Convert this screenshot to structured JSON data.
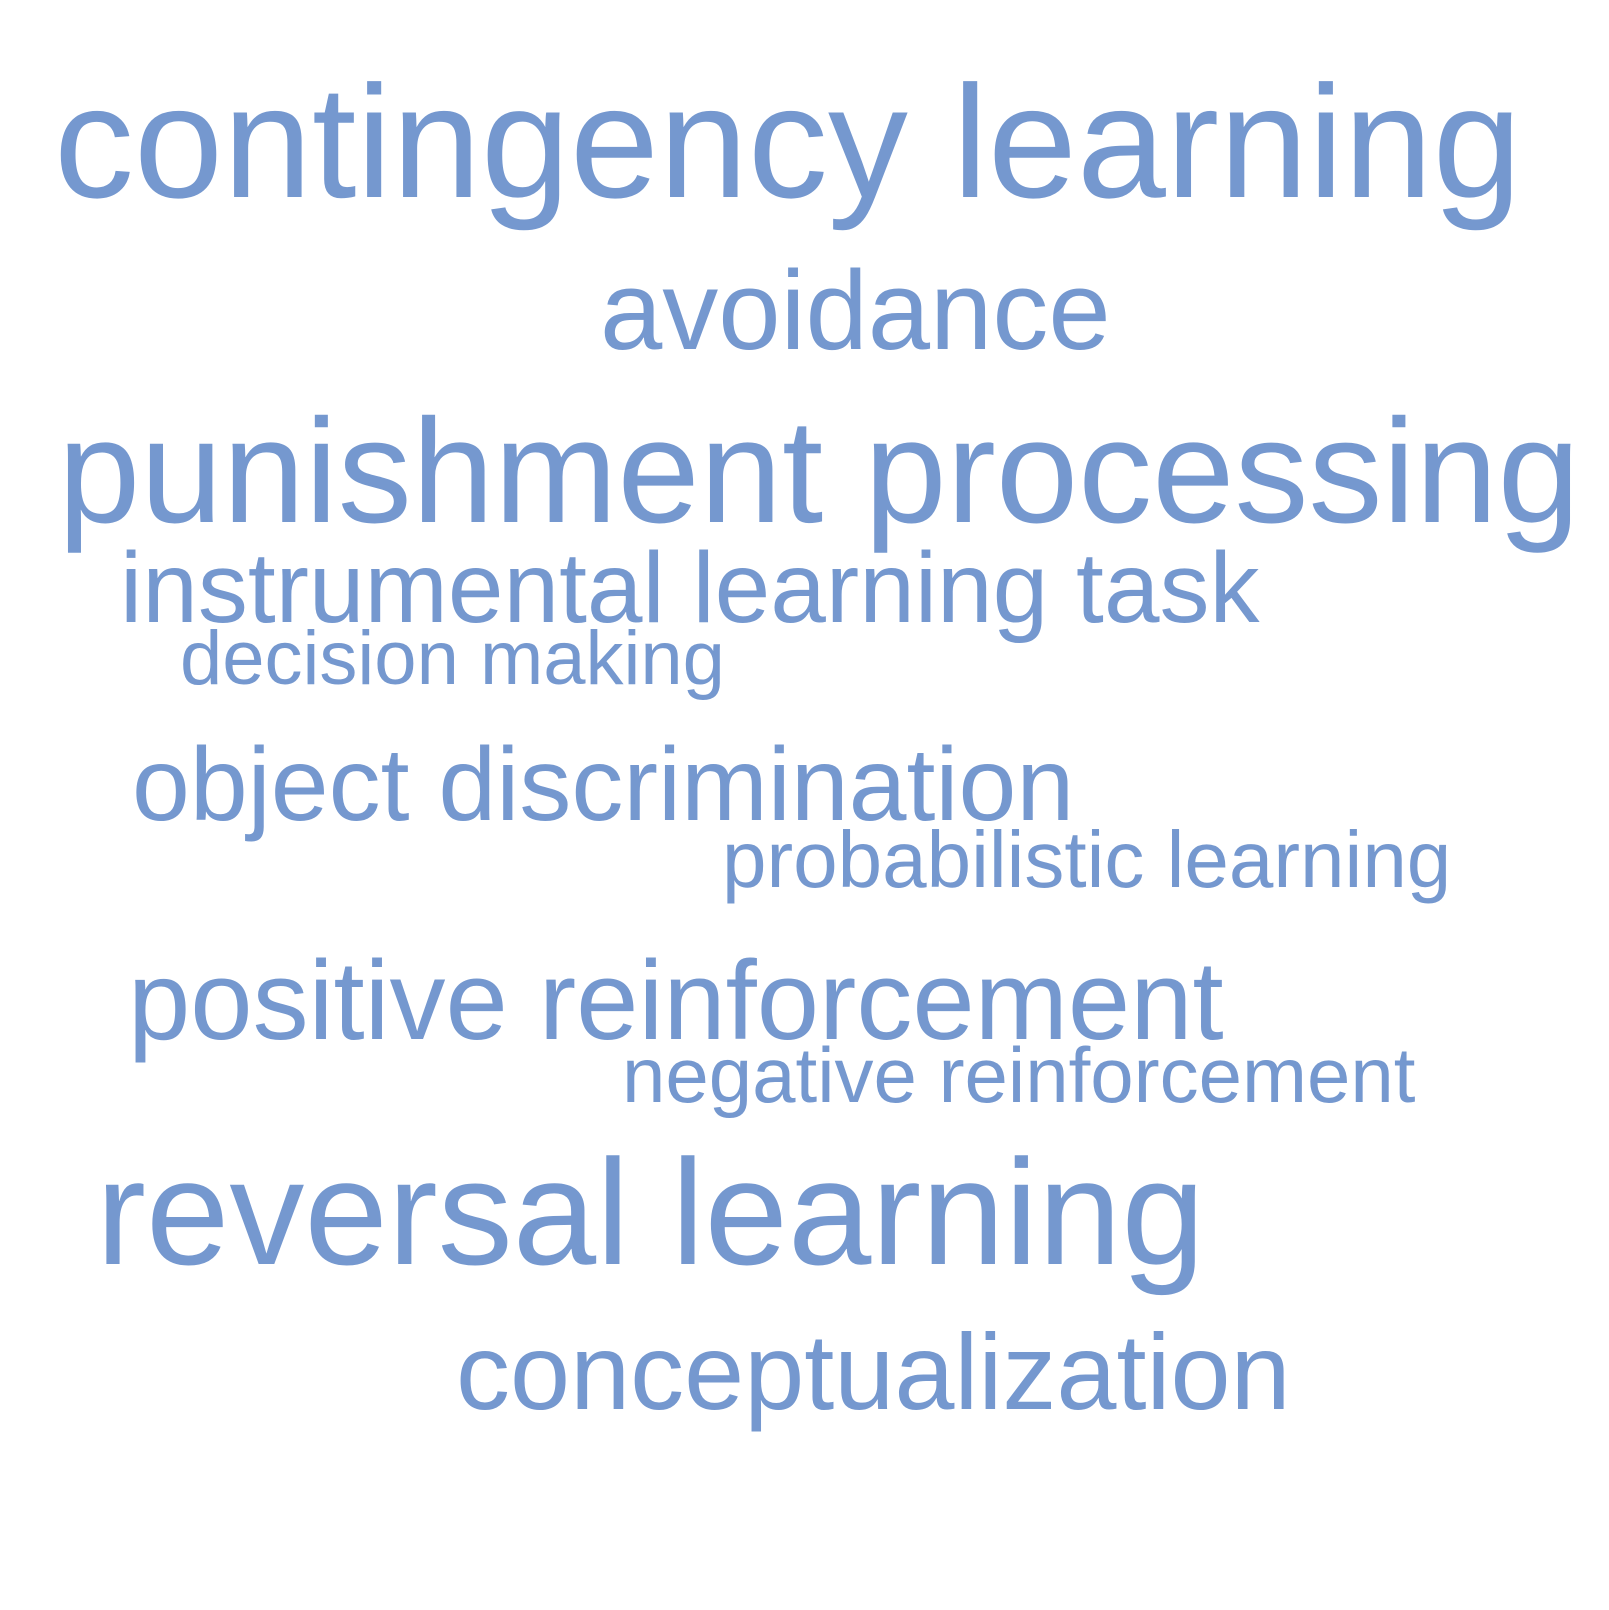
{
  "words": [
    "contingency learning",
    "avoidance",
    "punishment processing",
    "instrumental learning task",
    "decision making",
    "object discrimination",
    "probabilistic learning",
    "positive reinforcement",
    "negative reinforcement",
    "reversal learning",
    "conceptualization"
  ],
  "colors": {
    "word": "#7598cf",
    "background": "#ffffff"
  }
}
